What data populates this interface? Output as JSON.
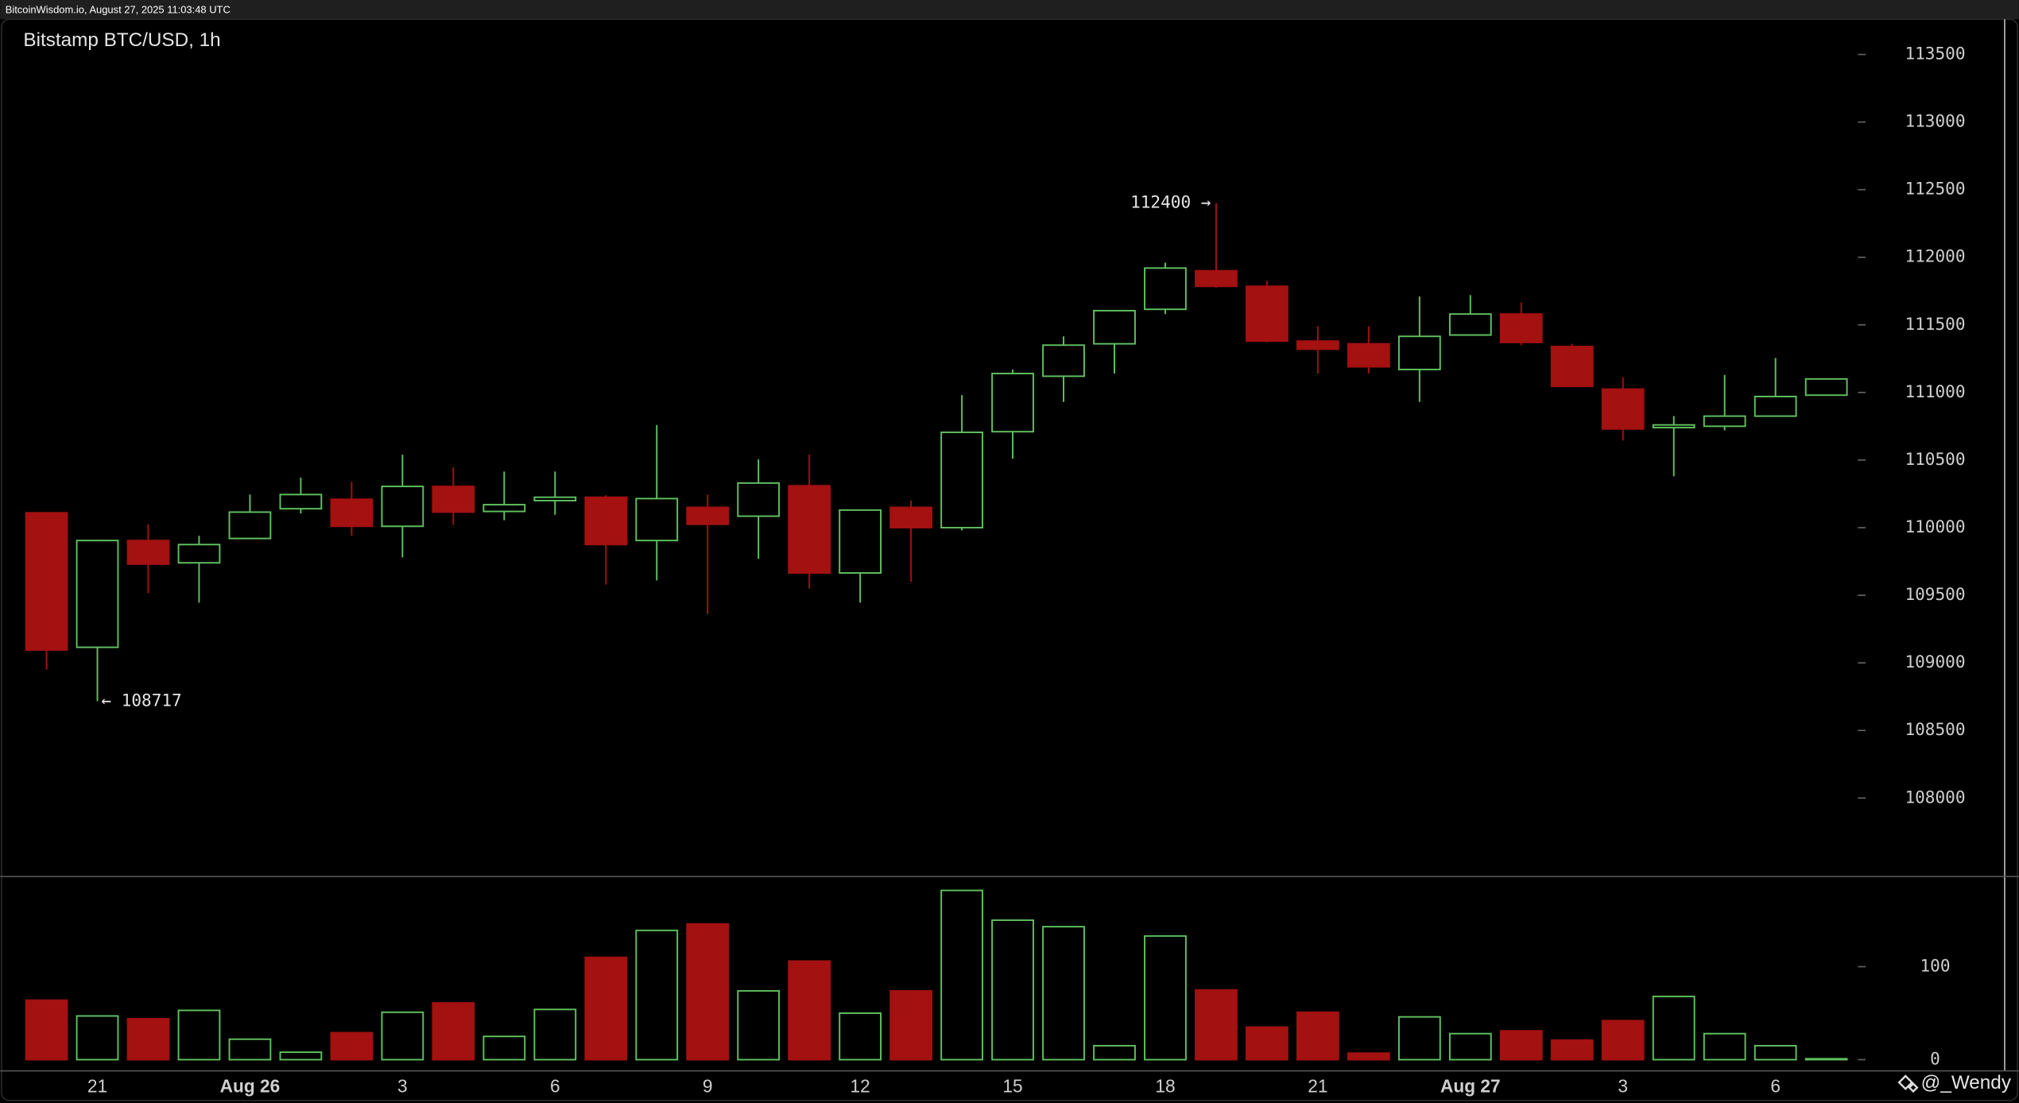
{
  "chart_data": {
    "type": "candlestick",
    "header": "BitcoinWisdom.io, August 27, 2025 11:03:48 UTC",
    "title": "Bitstamp BTC/USD, 1h",
    "high_label": "112400 →",
    "low_label": "← 108717",
    "watermark": "@_Wendy",
    "categories": [
      null,
      "21",
      null,
      null,
      "Aug 26",
      null,
      null,
      "3",
      null,
      null,
      "6",
      null,
      null,
      "9",
      null,
      null,
      "12",
      null,
      null,
      "15",
      null,
      null,
      "18",
      null,
      null,
      "21",
      null,
      null,
      "Aug 27",
      null,
      null,
      "3",
      null,
      null,
      "6",
      null
    ],
    "open": [
      110110,
      109115,
      109905,
      109740,
      109920,
      110140,
      110210,
      110010,
      110305,
      110120,
      110200,
      110225,
      109905,
      110150,
      110085,
      110310,
      109665,
      110150,
      110000,
      110710,
      111120,
      111360,
      111615,
      111900,
      111785,
      111380,
      111360,
      111170,
      111425,
      111580,
      111340,
      111025,
      110740,
      110750,
      110825,
      110980
    ],
    "high": [
      110110,
      109910,
      110025,
      109940,
      110245,
      110370,
      110340,
      110540,
      110445,
      110415,
      110415,
      110240,
      110760,
      110245,
      110505,
      110540,
      110135,
      110200,
      110980,
      111170,
      111415,
      111605,
      111960,
      112400,
      111825,
      111490,
      111490,
      111710,
      111720,
      111665,
      111360,
      111110,
      110825,
      111130,
      111255,
      111100
    ],
    "low": [
      108950,
      108717,
      109515,
      109445,
      109920,
      110105,
      109940,
      109780,
      110020,
      110055,
      110095,
      109580,
      109610,
      109360,
      109770,
      109550,
      109445,
      109600,
      109980,
      110510,
      110930,
      111140,
      111580,
      111775,
      111370,
      111140,
      111140,
      110930,
      111425,
      111350,
      111045,
      110645,
      110380,
      110720,
      110825,
      110980
    ],
    "close": [
      109095,
      109905,
      109730,
      109875,
      110115,
      110245,
      110010,
      110305,
      110115,
      110170,
      110225,
      109875,
      110215,
      110025,
      110330,
      109665,
      110130,
      110000,
      110705,
      111140,
      111350,
      111605,
      111920,
      111785,
      111380,
      111320,
      111190,
      111415,
      111580,
      111370,
      111045,
      110730,
      110760,
      110825,
      110970,
      111100
    ],
    "volume": [
      64,
      47,
      44,
      53,
      22,
      8,
      29,
      51,
      61,
      25,
      54,
      110,
      139,
      146,
      74,
      106,
      50,
      74,
      182,
      150,
      143,
      15,
      133,
      75,
      35,
      51,
      7,
      46,
      28,
      31,
      21,
      42,
      68,
      28,
      15,
      1
    ],
    "ylim": [
      107420,
      113760
    ],
    "yticks": [
      108000,
      108500,
      109000,
      109500,
      110000,
      110500,
      111000,
      111500,
      112000,
      112500,
      113000,
      113500
    ],
    "volume_lim": [
      -12,
      197
    ],
    "volume_ticks": [
      0,
      100
    ],
    "up_color": "#5fc15f",
    "down_color": "#a31111"
  }
}
